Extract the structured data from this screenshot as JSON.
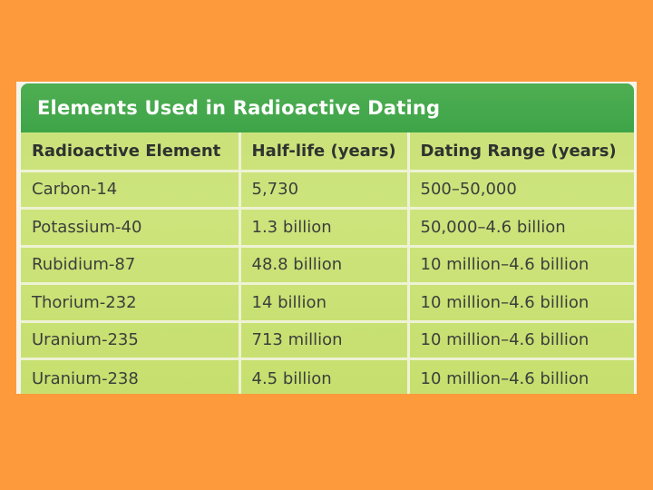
{
  "table": {
    "title": "Elements Used in Radioactive Dating",
    "headers": [
      "Radioactive Element",
      "Half-life (years)",
      "Dating Range (years)"
    ],
    "rows": [
      [
        "Carbon-14",
        "5,730",
        "500–50,000"
      ],
      [
        "Potassium-40",
        "1.3 billion",
        "50,000–4.6 billion"
      ],
      [
        "Rubidium-87",
        "48.8 billion",
        "10 million–4.6 billion"
      ],
      [
        "Thorium-232",
        "14 billion",
        "10 million–4.6 billion"
      ],
      [
        "Uranium-235",
        "713 million",
        "10 million–4.6 billion"
      ],
      [
        "Uranium-238",
        "4.5 billion",
        "10 million–4.6 billion"
      ]
    ]
  },
  "colors": {
    "background": "#fd9a3c",
    "title_bar": "#45a84c",
    "table_body": "#c9e07a",
    "grid_lines": "#eef3d4"
  }
}
